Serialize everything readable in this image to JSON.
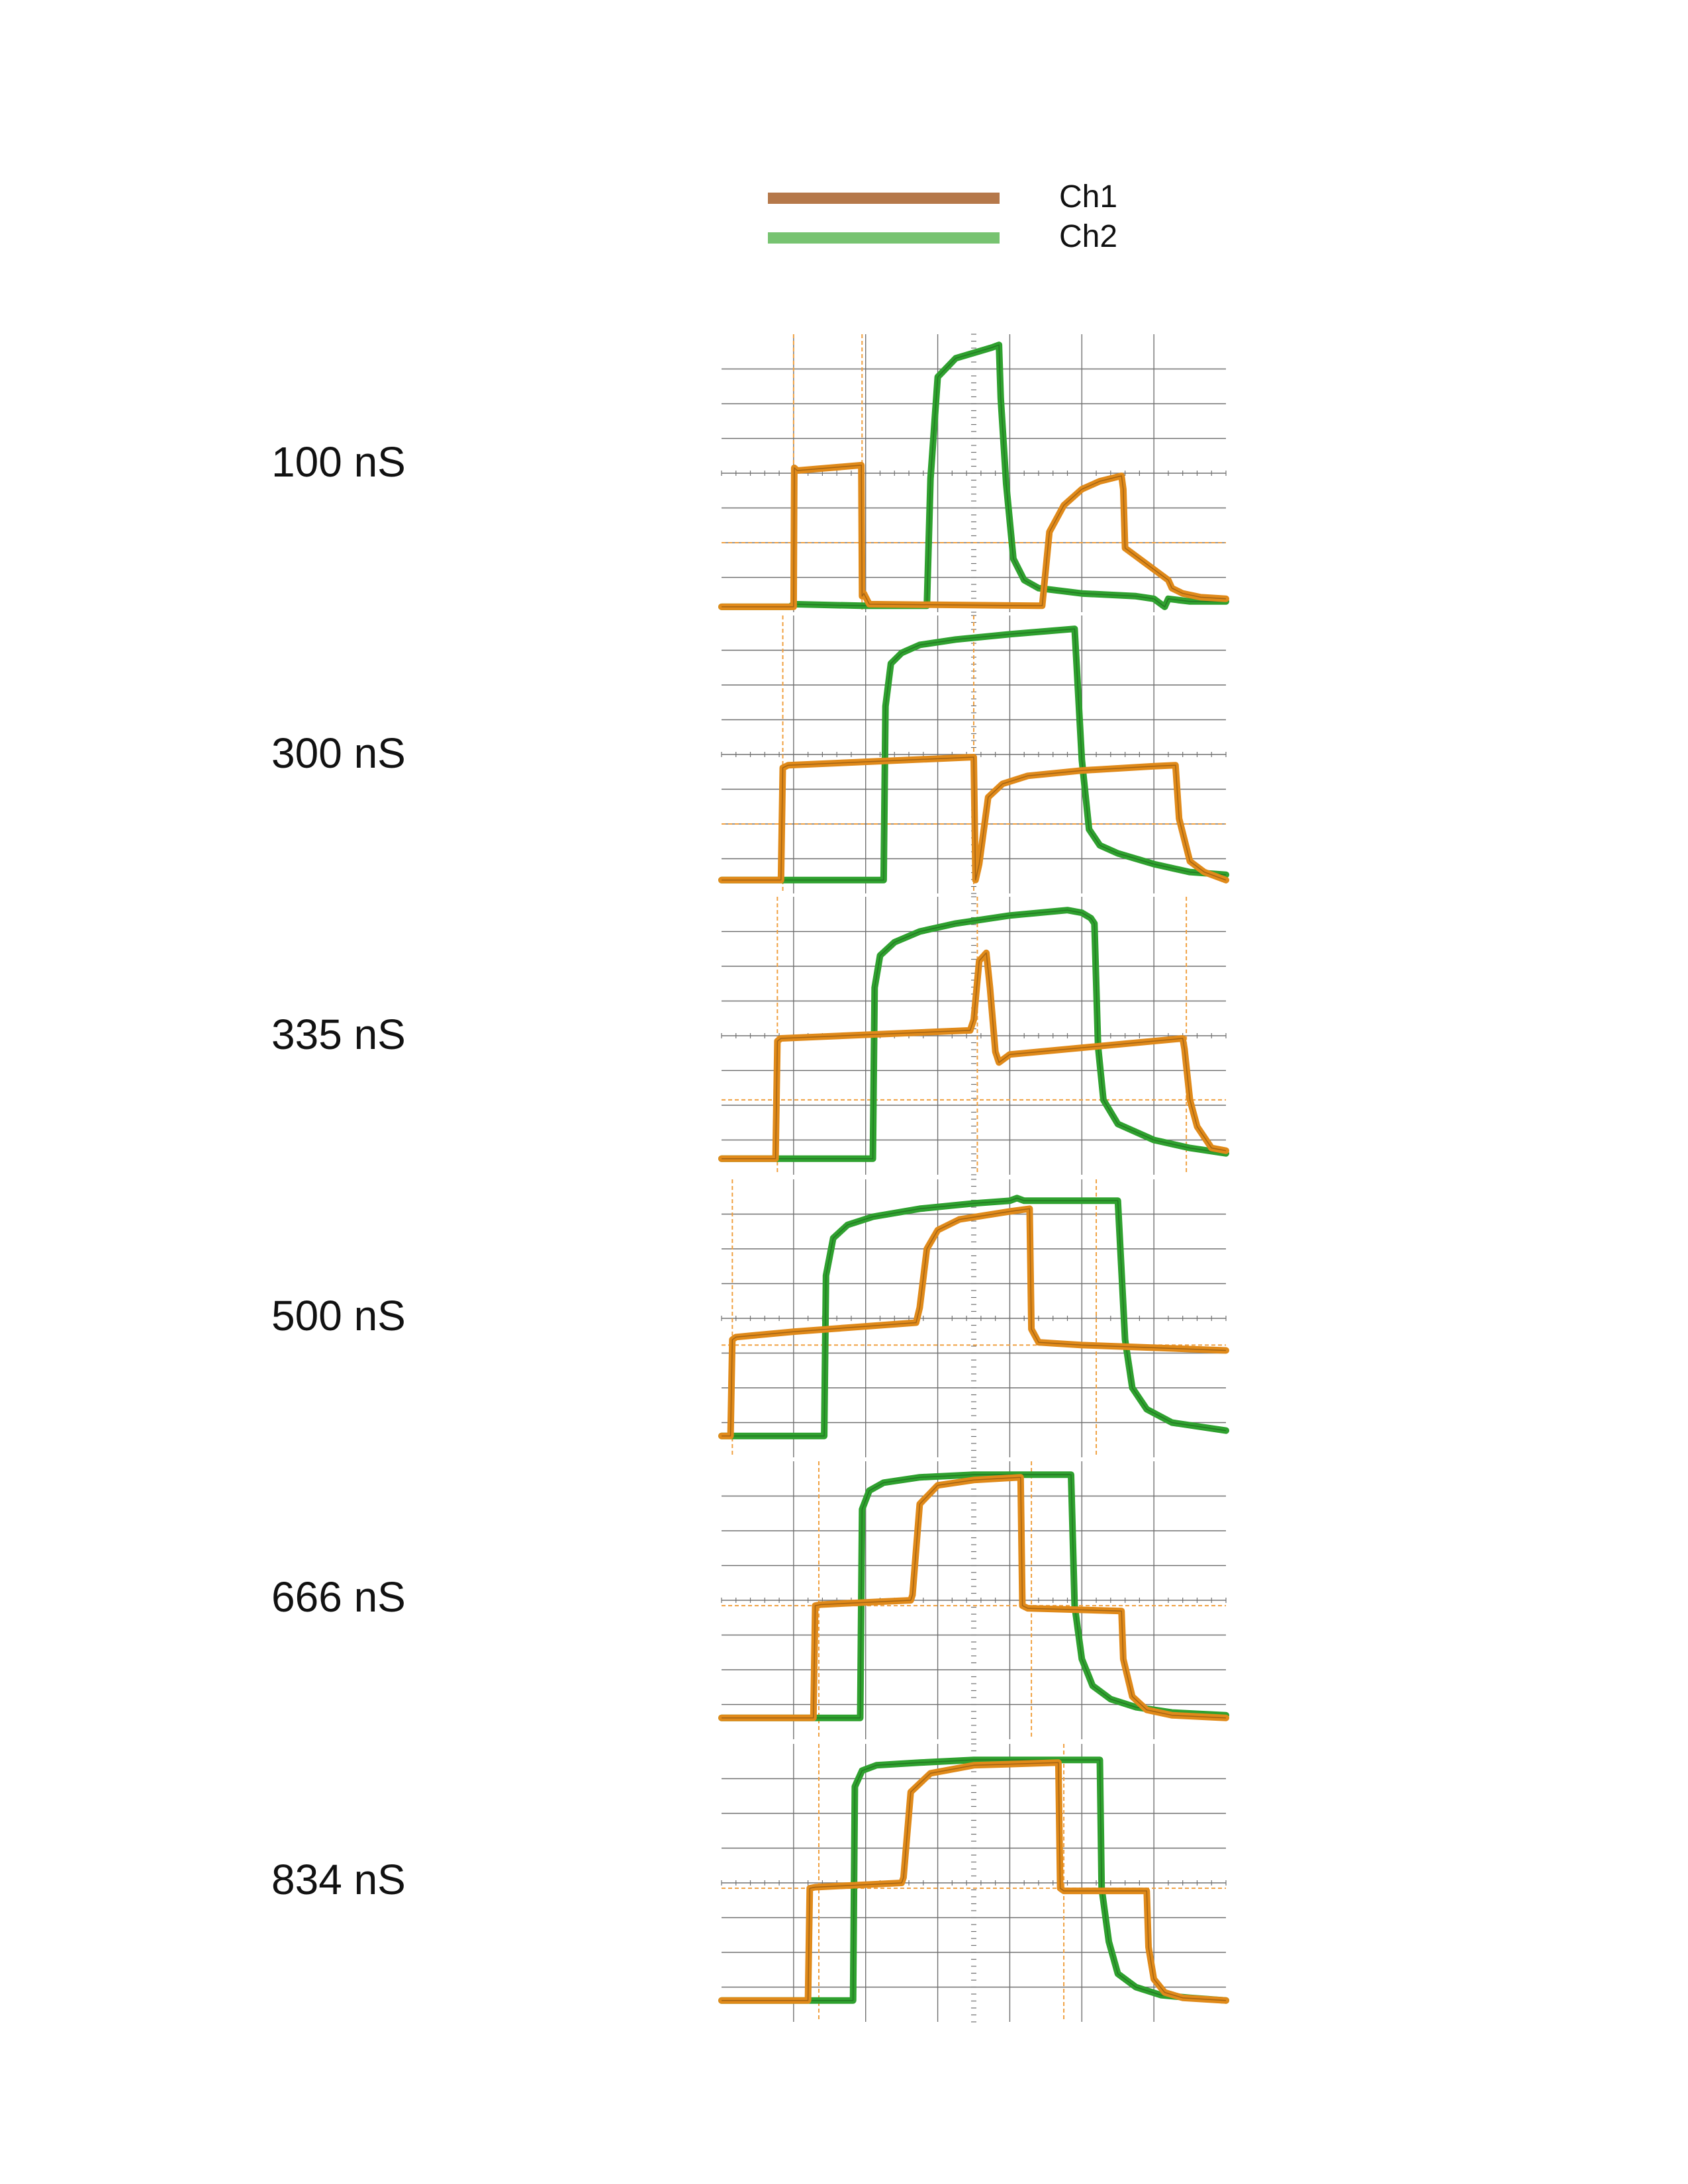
{
  "legend": [
    {
      "name": "Ch1",
      "color": "#b5784a"
    },
    {
      "name": "Ch2",
      "color": "#77c371"
    }
  ],
  "trace_colors": {
    "ch1": "#e08a1a",
    "ch2": "#2fa12f",
    "grid": "#707070",
    "ref": "#f0a040"
  },
  "chart_data": [
    {
      "type": "line",
      "title": "100 nS",
      "cursors_x": [
        2.0,
        3.9
      ],
      "ref_y": 1.3,
      "series": [
        {
          "name": "Ch1",
          "x": [
            0,
            2.0,
            2.02,
            2.1,
            3.88,
            3.9,
            3.95,
            4.1,
            8.8,
            8.9,
            9.1,
            9.5,
            10,
            10.5,
            11.1,
            11.15,
            11.2,
            12.4,
            12.5,
            12.8,
            13.3,
            14.0
          ],
          "y": [
            0.1,
            0.1,
            2.7,
            2.65,
            2.75,
            0.3,
            0.35,
            0.15,
            0.12,
            0.12,
            1.5,
            2.0,
            2.3,
            2.45,
            2.55,
            2.3,
            1.2,
            0.6,
            0.45,
            0.35,
            0.28,
            0.25
          ]
        },
        {
          "name": "Ch2",
          "x": [
            0,
            1.9,
            2.0,
            3.9,
            4.0,
            5.7,
            5.8,
            6.0,
            6.5,
            7.5,
            7.7,
            7.75,
            7.9,
            8.1,
            8.4,
            8.8,
            10,
            11.5,
            12.0,
            12.3,
            12.4,
            13.0,
            14.0
          ],
          "y": [
            0.1,
            0.1,
            0.15,
            0.12,
            0.12,
            0.12,
            2.5,
            4.4,
            4.75,
            4.95,
            5.0,
            4.0,
            2.4,
            1.0,
            0.6,
            0.45,
            0.35,
            0.3,
            0.25,
            0.1,
            0.25,
            0.2,
            0.2
          ]
        }
      ]
    },
    {
      "type": "line",
      "title": "300 nS",
      "cursors_x": [
        1.7,
        7.0
      ],
      "ref_y": 1.3,
      "series": [
        {
          "name": "Ch1",
          "x": [
            0,
            1.65,
            1.7,
            1.85,
            7.0,
            7.05,
            7.15,
            7.4,
            7.8,
            8.5,
            10,
            12,
            12.6,
            12.7,
            13.0,
            13.4,
            14.0
          ],
          "y": [
            0.25,
            0.25,
            2.35,
            2.4,
            2.55,
            0.25,
            0.55,
            1.8,
            2.05,
            2.2,
            2.3,
            2.38,
            2.4,
            1.4,
            0.6,
            0.4,
            0.25
          ]
        },
        {
          "name": "Ch2",
          "x": [
            0,
            4.5,
            4.55,
            4.7,
            5.0,
            5.5,
            6.5,
            8,
            9.8,
            10.0,
            10.2,
            10.5,
            11,
            12,
            13,
            14.0
          ],
          "y": [
            0.25,
            0.25,
            3.5,
            4.3,
            4.5,
            4.65,
            4.75,
            4.85,
            4.95,
            2.5,
            1.2,
            0.9,
            0.75,
            0.55,
            0.4,
            0.35
          ]
        }
      ]
    },
    {
      "type": "line",
      "title": "335 nS",
      "cursors_x": [
        1.55,
        7.1,
        12.9
      ],
      "ref_y": 1.4,
      "series": [
        {
          "name": "Ch1",
          "x": [
            0,
            1.5,
            1.55,
            1.65,
            6.9,
            7.0,
            7.15,
            7.35,
            7.45,
            7.6,
            7.7,
            8.0,
            12.8,
            12.85,
            13.0,
            13.2,
            13.6,
            14.0
          ],
          "y": [
            0.3,
            0.3,
            2.5,
            2.55,
            2.7,
            2.9,
            4.0,
            4.15,
            3.5,
            2.3,
            2.1,
            2.25,
            2.55,
            2.35,
            1.4,
            0.9,
            0.5,
            0.45
          ]
        },
        {
          "name": "Ch2",
          "x": [
            0,
            4.2,
            4.25,
            4.4,
            4.8,
            5.5,
            6.5,
            8,
            9.6,
            10.0,
            10.25,
            10.35,
            10.45,
            10.6,
            11,
            12,
            13,
            14.0
          ],
          "y": [
            0.3,
            0.3,
            3.5,
            4.1,
            4.35,
            4.55,
            4.7,
            4.85,
            4.95,
            4.9,
            4.8,
            4.7,
            2.4,
            1.4,
            0.95,
            0.65,
            0.5,
            0.4
          ]
        }
      ]
    },
    {
      "type": "line",
      "title": "500 nS",
      "cursors_x": [
        0.3,
        10.4
      ],
      "ref_y": 2.1,
      "series": [
        {
          "name": "Ch1",
          "x": [
            0,
            0.25,
            0.3,
            0.4,
            2,
            4,
            5.4,
            5.5,
            5.7,
            6.0,
            6.6,
            8,
            8.55,
            8.6,
            8.8,
            10,
            12,
            14.0
          ],
          "y": [
            0.4,
            0.4,
            2.2,
            2.25,
            2.35,
            2.45,
            2.52,
            2.8,
            3.9,
            4.25,
            4.45,
            4.6,
            4.65,
            2.4,
            2.15,
            2.1,
            2.05,
            2.0
          ]
        },
        {
          "name": "Ch2",
          "x": [
            0,
            2.85,
            2.9,
            3.1,
            3.5,
            4.2,
            5.5,
            7,
            8,
            8.2,
            8.4,
            9,
            10.5,
            11.0,
            11.2,
            11.4,
            11.8,
            12.5,
            14.0
          ],
          "y": [
            0.4,
            0.4,
            3.4,
            4.1,
            4.35,
            4.5,
            4.65,
            4.75,
            4.8,
            4.85,
            4.8,
            4.8,
            4.8,
            4.8,
            2.2,
            1.3,
            0.9,
            0.65,
            0.5
          ]
        }
      ]
    },
    {
      "type": "line",
      "title": "666 nS",
      "cursors_x": [
        2.7,
        8.6
      ],
      "ref_y": 2.5,
      "series": [
        {
          "name": "Ch1",
          "x": [
            0,
            2.55,
            2.6,
            2.75,
            5.25,
            5.3,
            5.5,
            6.0,
            7,
            8.3,
            8.35,
            8.5,
            11.1,
            11.15,
            11.4,
            11.8,
            12.5,
            14.0
          ],
          "y": [
            0.4,
            0.4,
            2.5,
            2.52,
            2.6,
            2.7,
            4.4,
            4.75,
            4.85,
            4.9,
            2.5,
            2.45,
            2.4,
            1.5,
            0.8,
            0.55,
            0.45,
            0.4
          ]
        },
        {
          "name": "Ch2",
          "x": [
            0,
            3.85,
            3.9,
            4.1,
            4.5,
            5.5,
            7,
            9,
            9.7,
            9.8,
            10.0,
            10.3,
            10.8,
            11.5,
            12.5,
            14.0
          ],
          "y": [
            0.4,
            0.4,
            4.3,
            4.65,
            4.8,
            4.9,
            4.95,
            4.95,
            4.95,
            2.5,
            1.5,
            1.0,
            0.75,
            0.6,
            0.5,
            0.45
          ]
        }
      ]
    },
    {
      "type": "line",
      "title": "834 nS",
      "cursors_x": [
        2.7,
        9.5
      ],
      "ref_y": 2.5,
      "series": [
        {
          "name": "Ch1",
          "x": [
            0,
            2.4,
            2.45,
            2.6,
            5.0,
            5.05,
            5.25,
            5.8,
            7,
            9.35,
            9.4,
            9.5,
            11.8,
            11.85,
            12.0,
            12.3,
            12.8,
            14.0
          ],
          "y": [
            0.4,
            0.4,
            2.5,
            2.52,
            2.6,
            2.7,
            4.3,
            4.65,
            4.8,
            4.85,
            2.5,
            2.45,
            2.45,
            1.4,
            0.8,
            0.55,
            0.45,
            0.4
          ]
        },
        {
          "name": "Ch2",
          "x": [
            0,
            3.65,
            3.7,
            3.9,
            4.3,
            5.5,
            7,
            9,
            10.5,
            10.55,
            10.75,
            11.0,
            11.5,
            12.2,
            13,
            14.0
          ],
          "y": [
            0.4,
            0.4,
            4.4,
            4.7,
            4.8,
            4.85,
            4.9,
            4.9,
            4.9,
            2.5,
            1.5,
            0.9,
            0.65,
            0.5,
            0.45,
            0.4
          ]
        }
      ]
    }
  ]
}
